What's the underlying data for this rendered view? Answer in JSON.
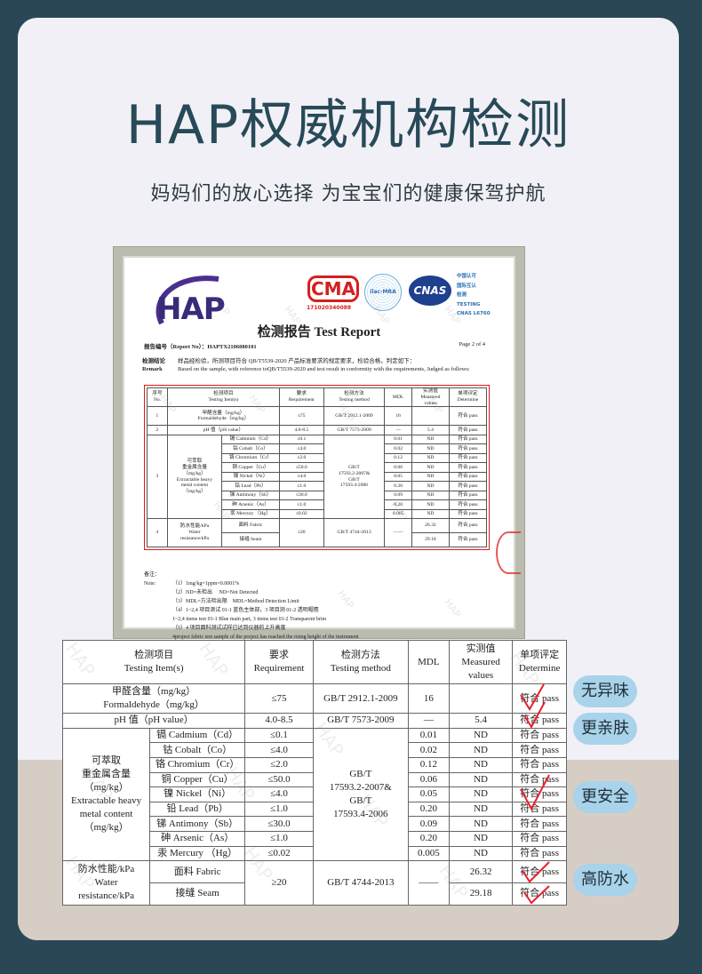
{
  "header": {
    "title": "HAP权威机构检测",
    "subtitle": "妈妈们的放心选择 为宝宝们的健康保驾护航"
  },
  "certificate": {
    "logo_text": "HAP",
    "cma_text": "CMA",
    "cma_number": "171020340088",
    "ilac_text": "ilac-MRA",
    "cnas_text": "CNAS",
    "cnas_caption": "中国认可\n国际互认\n检测\nTESTING\nCNAS L6760",
    "report_title": "检测报告 Test Report",
    "report_no": "报告编号（Report No）：HAPTX2106080101",
    "page": "Page 2 of 4",
    "remark_label_cn": "检测结论",
    "remark_label_en": "Remark",
    "remark_cn": "样品经检验，所测项目符合 QB/T5539-2020 产品标准要求的规定要求，检验合格，判定如下：",
    "remark_en": "Based on the sample, with reference toQB/T5539-2020 and test result in conformity with the requirements, Judged as follows:",
    "notes_label": "备注：\nNote:",
    "notes": "（1）1mg/kg=1ppm=0.0001%\n（2）ND=未检出　 ND=Not Detected\n（3）MDL=方法检出限　MDL=Method Detection Limit\n（4）1~2,4 项目测试 01-1 蓝色主体部，3 项目测 01-2 透明帽檐\n1~2,4 items test 01-1 Blue main part, 3 items test 01-2 Transparent brim\n（5）4 项目面料测试试样已达到仪器的上升高度\n4project fabric test sample of the project has reached the rising height of the instrument"
  },
  "watermark": "HAP",
  "table": {
    "headers": {
      "no": "序号\nNo.",
      "item": "检测项目\nTesting  Item(s)",
      "requirement": "要求\nRequirement",
      "method": "检测方法\nTesting  method",
      "mdl": "MDL",
      "measured": "实测值\nMeasured\nvalues",
      "determine": "单项评定\nDetermine"
    },
    "rows": [
      {
        "no": "1",
        "item": "甲醛含量（mg/kg）\nFormaldehyde（mg/kg）",
        "requirement": "≤75",
        "method": "GB/T  2912.1-2009",
        "mdl": "16",
        "measured": "",
        "determine": "符合 pass"
      },
      {
        "no": "2",
        "item": "pH 值（pH  value）",
        "requirement": "4.0-8.5",
        "method": "GB/T  7573-2009",
        "mdl": "—",
        "measured": "5.4",
        "determine": "符合 pass"
      }
    ],
    "metals": {
      "no": "3",
      "group": "可萃取\n重金属含量\n（mg/kg）\nExtractable heavy\nmetal content\n（mg/kg）",
      "method": "GB/T\n17593.2-2007&\nGB/T\n17593.4-2006",
      "items": [
        {
          "item": "镉 Cadmium（Cd）",
          "requirement": "≤0.1",
          "mdl": "0.01",
          "measured": "ND",
          "determine": "符合 pass"
        },
        {
          "item": "钴 Cobalt（Co）",
          "requirement": "≤4.0",
          "mdl": "0.02",
          "measured": "ND",
          "determine": "符合 pass"
        },
        {
          "item": "铬 Chromium（Cr）",
          "requirement": "≤2.0",
          "mdl": "0.12",
          "measured": "ND",
          "determine": "符合 pass"
        },
        {
          "item": "铜 Copper（Cu）",
          "requirement": "≤50.0",
          "mdl": "0.06",
          "measured": "ND",
          "determine": "符合 pass"
        },
        {
          "item": "镍 Nickel（Ni）",
          "requirement": "≤4.0",
          "mdl": "0.05",
          "measured": "ND",
          "determine": "符合 pass"
        },
        {
          "item": "铅 Lead（Pb）",
          "requirement": "≤1.0",
          "mdl": "0.20",
          "measured": "ND",
          "determine": "符合 pass"
        },
        {
          "item": "锑 Antimony（Sb）",
          "requirement": "≤30.0",
          "mdl": "0.09",
          "measured": "ND",
          "determine": "符合 pass"
        },
        {
          "item": "砷 Arsenic（As）",
          "requirement": "≤1.0",
          "mdl": "0.20",
          "measured": "ND",
          "determine": "符合 pass"
        },
        {
          "item": "汞 Mercury （Hg）",
          "requirement": "≤0.02",
          "mdl": "0.005",
          "measured": "ND",
          "determine": "符合 pass"
        }
      ]
    },
    "water": {
      "no": "4",
      "group": "防水性能/kPa\nWater\nresistance/kPa",
      "requirement": "≥20",
      "method": "GB/T 4744-2013",
      "mdl": "——",
      "items": [
        {
          "item": "面料 Fabric",
          "measured": "26.32",
          "determine": "符合 pass"
        },
        {
          "item": "接缝 Seam",
          "measured": "29.18",
          "determine": "符合 pass"
        }
      ]
    }
  },
  "badges": [
    "无异味",
    "更亲肤",
    "更安全",
    "高防水"
  ],
  "colors": {
    "background": "#2a4755",
    "title": "#284a58",
    "badge": "#a8d3ea",
    "check": "#e8202a",
    "highlight_box": "#e01818"
  }
}
